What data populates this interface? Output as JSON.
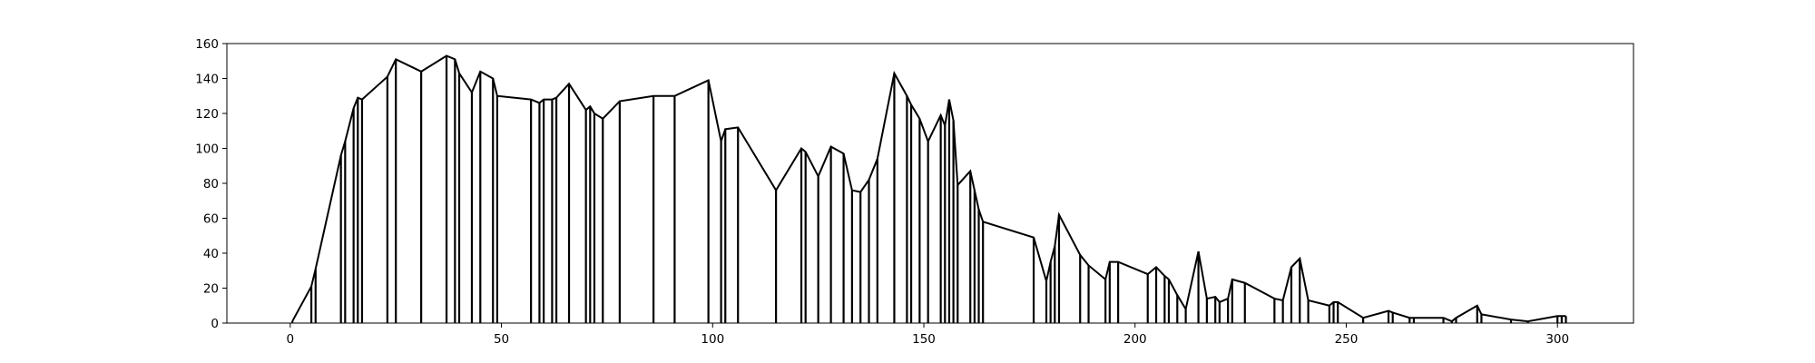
{
  "chart_data": {
    "type": "line",
    "title": "",
    "xlabel": "",
    "ylabel": "",
    "xlim": [
      -15,
      318
    ],
    "ylim": [
      0,
      160
    ],
    "xticks": [
      0,
      50,
      100,
      150,
      200,
      250,
      300
    ],
    "yticks": [
      0,
      20,
      40,
      60,
      80,
      100,
      120,
      140,
      160
    ],
    "grid": false,
    "legend": "none",
    "line_color": "#000000",
    "series": [
      {
        "style": "vertical lines from 0 to each point, envelope line connecting the tops",
        "points": [
          [
            0.5,
            1
          ],
          [
            5,
            21
          ],
          [
            6,
            31
          ],
          [
            12,
            96
          ],
          [
            13,
            104
          ],
          [
            15,
            123
          ],
          [
            16,
            129
          ],
          [
            17,
            128
          ],
          [
            23,
            141
          ],
          [
            25,
            151
          ],
          [
            31,
            144
          ],
          [
            37,
            153
          ],
          [
            39,
            151
          ],
          [
            40,
            143
          ],
          [
            43,
            132
          ],
          [
            45,
            144
          ],
          [
            48,
            140
          ],
          [
            49,
            130
          ],
          [
            57,
            128
          ],
          [
            59,
            126
          ],
          [
            60,
            128
          ],
          [
            62,
            128
          ],
          [
            63,
            129
          ],
          [
            66,
            137
          ],
          [
            70,
            122
          ],
          [
            71,
            124
          ],
          [
            72,
            120
          ],
          [
            74,
            117
          ],
          [
            78,
            127
          ],
          [
            86,
            130
          ],
          [
            91,
            130
          ],
          [
            99,
            139
          ],
          [
            102,
            104
          ],
          [
            103,
            111
          ],
          [
            106,
            112
          ],
          [
            115,
            76
          ],
          [
            121,
            100
          ],
          [
            122,
            98
          ],
          [
            125,
            84
          ],
          [
            128,
            101
          ],
          [
            131,
            97
          ],
          [
            133,
            76
          ],
          [
            135,
            75
          ],
          [
            137,
            82
          ],
          [
            139,
            94
          ],
          [
            143,
            143
          ],
          [
            146,
            130
          ],
          [
            147,
            125
          ],
          [
            149,
            117
          ],
          [
            151,
            104
          ],
          [
            154,
            119
          ],
          [
            155,
            113
          ],
          [
            156,
            128
          ],
          [
            157,
            116
          ],
          [
            158,
            79
          ],
          [
            161,
            87
          ],
          [
            162,
            76
          ],
          [
            163,
            65
          ],
          [
            164,
            58
          ],
          [
            176,
            49
          ],
          [
            179,
            24
          ],
          [
            180,
            35
          ],
          [
            181,
            44
          ],
          [
            182,
            62
          ],
          [
            187,
            39
          ],
          [
            189,
            33
          ],
          [
            193,
            25
          ],
          [
            194,
            35
          ],
          [
            196,
            35
          ],
          [
            203,
            28
          ],
          [
            205,
            32
          ],
          [
            207,
            27
          ],
          [
            208,
            25
          ],
          [
            210,
            16
          ],
          [
            212,
            8
          ],
          [
            215,
            41
          ],
          [
            217,
            14
          ],
          [
            219,
            15
          ],
          [
            220,
            12
          ],
          [
            222,
            14
          ],
          [
            223,
            25
          ],
          [
            226,
            23
          ],
          [
            233,
            14
          ],
          [
            235,
            13
          ],
          [
            237,
            32
          ],
          [
            239,
            37
          ],
          [
            241,
            13
          ],
          [
            246,
            10
          ],
          [
            247,
            12
          ],
          [
            248,
            12
          ],
          [
            254,
            3
          ],
          [
            260,
            7
          ],
          [
            261,
            6
          ],
          [
            265,
            3
          ],
          [
            266,
            3
          ],
          [
            273,
            3
          ],
          [
            275,
            1
          ],
          [
            276,
            3
          ],
          [
            281,
            10
          ],
          [
            282,
            5
          ],
          [
            289,
            2
          ],
          [
            293,
            1
          ],
          [
            300,
            4
          ],
          [
            301,
            4
          ],
          [
            302,
            4
          ]
        ]
      }
    ]
  }
}
